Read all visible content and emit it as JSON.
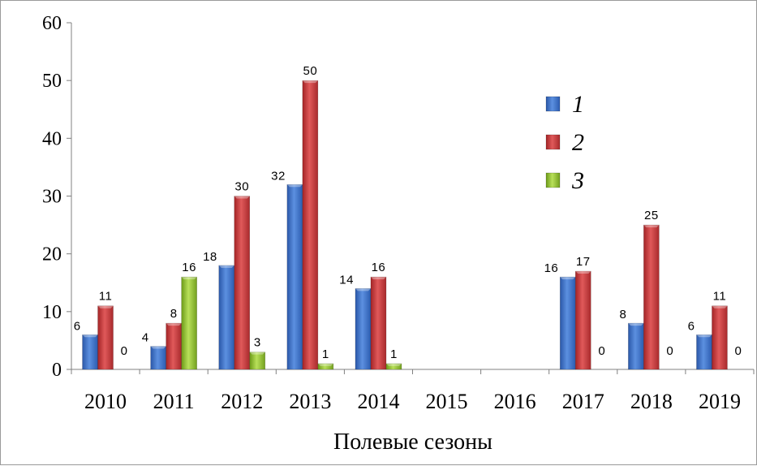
{
  "chart_data": {
    "type": "bar",
    "categories": [
      "2010",
      "2011",
      "2012",
      "2013",
      "2014",
      "2015",
      "2016",
      "2017",
      "2018",
      "2019"
    ],
    "series": [
      {
        "name": "1",
        "color": "#3a6fc4",
        "values": [
          6,
          4,
          18,
          32,
          14,
          null,
          null,
          16,
          8,
          6
        ]
      },
      {
        "name": "2",
        "color": "#c0393b",
        "values": [
          11,
          8,
          30,
          50,
          16,
          null,
          null,
          17,
          25,
          11
        ]
      },
      {
        "name": "3",
        "color": "#8dbb2e",
        "values": [
          0,
          16,
          3,
          1,
          1,
          null,
          null,
          0,
          0,
          0
        ]
      }
    ],
    "yticks": [
      0,
      10,
      20,
      30,
      40,
      50,
      60
    ],
    "ylim": [
      0,
      60
    ],
    "xlabel": "Полевые сезоны",
    "ylabel": "",
    "title": "",
    "legend_position": "top-right",
    "grid": false
  }
}
